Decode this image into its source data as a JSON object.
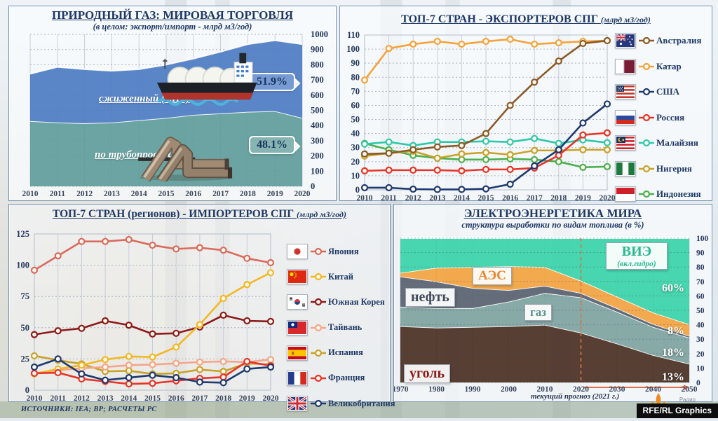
{
  "footer": {
    "sources": "ИСТОЧНИКИ: IEA; BP; РАСЧЕТЫ РС",
    "radio": "Радио",
    "credit": "RFE/RL Graphics"
  },
  "chart_data": [
    {
      "id": "gas-trade",
      "type": "area",
      "title": "ПРИРОДНЫЙ ГАЗ: МИРОВАЯ ТОРГОВЛЯ",
      "subtitle": "(в целом: экспорт/импорт - млрд м3/год)",
      "x": [
        2010,
        2011,
        2012,
        2013,
        2014,
        2015,
        2016,
        2017,
        2018,
        2019,
        2020
      ],
      "ylim": [
        0,
        1000
      ],
      "yticks": [
        0,
        100,
        200,
        300,
        400,
        500,
        600,
        700,
        800,
        900,
        1000
      ],
      "series": [
        {
          "name": "по трубопроводам",
          "pct": "48.1%",
          "color": "#5f9c9b",
          "values": [
            430,
            420,
            415,
            420,
            435,
            450,
            470,
            480,
            490,
            495,
            450
          ]
        },
        {
          "name": "сжиженный (СПГ)",
          "pct": "51.9%",
          "color": "#4c7cc3",
          "values": [
            310,
            365,
            355,
            340,
            335,
            350,
            370,
            405,
            445,
            465,
            485
          ]
        }
      ]
    },
    {
      "id": "lng-exporters",
      "type": "line",
      "title": "ТОП-7 СТРАН - ЭКСПОРТЕРОВ СПГ",
      "unit": "(млрд м3/год)",
      "x": [
        2010,
        2011,
        2012,
        2013,
        2014,
        2015,
        2016,
        2017,
        2018,
        2019,
        2020
      ],
      "ylim": [
        0,
        110
      ],
      "yticks": [
        0,
        10,
        20,
        30,
        40,
        50,
        60,
        70,
        80,
        90,
        100,
        110
      ],
      "series": [
        {
          "name": "Австралия",
          "flag": "au",
          "color": "#8a5a28",
          "values": [
            25.5,
            26,
            28.5,
            30.5,
            31.5,
            40,
            60,
            76.5,
            91.5,
            104,
            106
          ]
        },
        {
          "name": "Катар",
          "flag": "qa",
          "color": "#f5a33c",
          "values": [
            78,
            100.5,
            103.5,
            105.5,
            103.5,
            105.5,
            107,
            103.5,
            104.5,
            105.5,
            106
          ]
        },
        {
          "name": "США",
          "flag": "us",
          "color": "#1e3a70",
          "values": [
            1.5,
            1.5,
            0.5,
            0.3,
            0.3,
            0.7,
            4,
            17,
            28.5,
            47.5,
            61
          ]
        },
        {
          "name": "Россия",
          "flag": "ru",
          "color": "#e8342a",
          "values": [
            13.5,
            14,
            14,
            14,
            13.5,
            14.5,
            14.5,
            15.5,
            24.5,
            39,
            40.5
          ]
        },
        {
          "name": "Малайзия",
          "flag": "my",
          "color": "#2ec9ac",
          "values": [
            32.5,
            34,
            31.5,
            34,
            34,
            34.5,
            34,
            36.5,
            33,
            35.5,
            33.5
          ]
        },
        {
          "name": "Нигерия",
          "flag": "ng",
          "color": "#c8a22b",
          "values": [
            24,
            26,
            27.5,
            22.5,
            25.5,
            26.5,
            25,
            28,
            28,
            28.5,
            28.5
          ]
        },
        {
          "name": "Индонезия",
          "flag": "id",
          "color": "#4caf50",
          "values": [
            33,
            28.5,
            24.5,
            22.5,
            21.5,
            21.5,
            22,
            21.5,
            20,
            16,
            16.5
          ]
        }
      ]
    },
    {
      "id": "lng-importers",
      "type": "line",
      "title": "ТОП-7 СТРАН (регионов) - ИМПОРТЕРОВ СПГ",
      "unit": "(млрд м3/год)",
      "x": [
        2010,
        2011,
        2012,
        2013,
        2014,
        2015,
        2016,
        2017,
        2018,
        2019,
        2020
      ],
      "ylim": [
        0,
        125
      ],
      "yticks": [
        0,
        25,
        50,
        75,
        100,
        125
      ],
      "series": [
        {
          "name": "Япония",
          "flag": "jp",
          "color": "#da6a5e",
          "values": [
            96,
            107.5,
            119,
            119,
            120.5,
            116,
            113,
            114,
            112,
            105.5,
            102
          ]
        },
        {
          "name": "Китай",
          "flag": "cn",
          "color": "#f2b824",
          "values": [
            13,
            17,
            20,
            24.5,
            27,
            26.5,
            34.5,
            52.5,
            73.5,
            84.5,
            94
          ]
        },
        {
          "name": "Южная Корея",
          "flag": "kr",
          "color": "#8c1a1a",
          "values": [
            44.5,
            47.5,
            49.5,
            55.5,
            52,
            45,
            45.5,
            50.5,
            60,
            55.5,
            55
          ]
        },
        {
          "name": "Тайвань",
          "flag": "tw",
          "color": "#f5a58a",
          "values": [
            13.5,
            16,
            17.5,
            18.5,
            20,
            20.5,
            21.5,
            22.5,
            23,
            22.5,
            24.5
          ]
        },
        {
          "name": "Испания",
          "flag": "es",
          "color": "#c8a22b",
          "values": [
            27.5,
            24,
            21,
            15,
            15.5,
            13,
            13.5,
            16.5,
            15,
            21.5,
            20.5
          ]
        },
        {
          "name": "Франция",
          "flag": "fr",
          "color": "#e8342a",
          "values": [
            13.5,
            14,
            9,
            7,
            5,
            5.5,
            7.5,
            9.5,
            10.5,
            23,
            19.5
          ]
        },
        {
          "name": "Великобритания",
          "flag": "gb",
          "color": "#1e3a70",
          "values": [
            18.5,
            25,
            13,
            8,
            10,
            12,
            10,
            6.5,
            6,
            17,
            18.5
          ]
        }
      ]
    },
    {
      "id": "world-electricity",
      "type": "area",
      "title": "ЭЛЕКТРОЭНЕРГЕТИКА МИРА",
      "subtitle": "структура выработки по видам топлива (в %)",
      "x": [
        1970,
        1980,
        1990,
        2000,
        2010,
        2020,
        2030,
        2040,
        2050
      ],
      "ylim": [
        0,
        100
      ],
      "yticks": [
        0,
        10,
        20,
        30,
        40,
        50,
        60,
        70,
        80,
        90,
        100
      ],
      "forecast_label": "текущий прогноз (2021 г.)",
      "forecast_year": 2020,
      "series": [
        {
          "name": "уголь",
          "pct": "13%",
          "color": "#4a2f23",
          "values": [
            39,
            38,
            38.5,
            39,
            40,
            34.5,
            27,
            19,
            13
          ]
        },
        {
          "name": "газ",
          "pct": "18%",
          "color": "#7ea3a0",
          "values": [
            13.5,
            13.5,
            13,
            17,
            22,
            24.5,
            22,
            19.5,
            18
          ]
        },
        {
          "name": "нефть",
          "color": "#58616e",
          "values": [
            21,
            18.5,
            14,
            8,
            5,
            3,
            2.5,
            2,
            1.3
          ]
        },
        {
          "name": "АЭС",
          "pct": "8%",
          "color": "#f3a23e",
          "values": [
            2.5,
            9.5,
            14.5,
            16.5,
            13,
            8.5,
            8,
            8,
            8
          ]
        },
        {
          "name": "ВИЭ",
          "sub": "(вкл.гидро)",
          "pct": "60%",
          "color": "#38d3a8",
          "values": [
            24,
            20.5,
            20,
            19.5,
            20,
            29.5,
            40.5,
            51.5,
            59.7
          ]
        }
      ]
    }
  ]
}
